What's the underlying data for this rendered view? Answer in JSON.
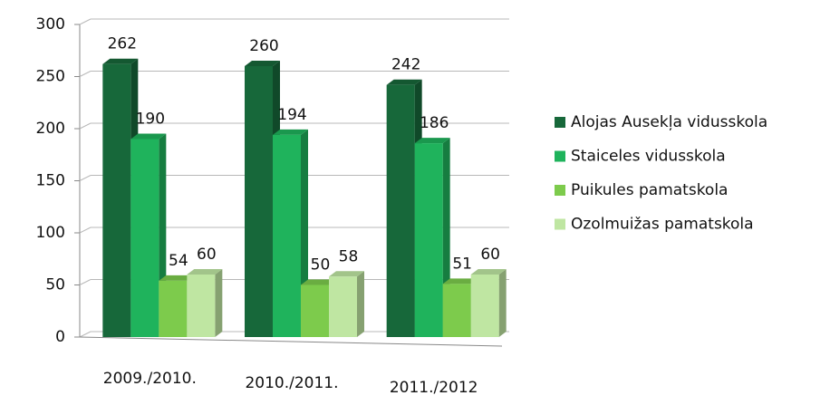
{
  "chart_data": {
    "type": "bar",
    "categories": [
      "2009./2010.",
      "2010./2011.",
      "2011./2012"
    ],
    "series": [
      {
        "name": "Alojas Ausekļa vidusskola",
        "color": "#17683a",
        "values": [
          262,
          260,
          242
        ]
      },
      {
        "name": "Staiceles vidusskola",
        "color": "#1fb35c",
        "values": [
          190,
          194,
          186
        ]
      },
      {
        "name": "Puikules pamatskola",
        "color": "#7dcb4c",
        "values": [
          54,
          50,
          51
        ]
      },
      {
        "name": "Ozolmuižas pamatskola",
        "color": "#bfe6a2",
        "values": [
          60,
          58,
          60
        ]
      }
    ],
    "ylim": [
      0,
      300
    ],
    "yticks": [
      0,
      50,
      100,
      150,
      200,
      250,
      300
    ],
    "grid": true,
    "legend": "right"
  }
}
